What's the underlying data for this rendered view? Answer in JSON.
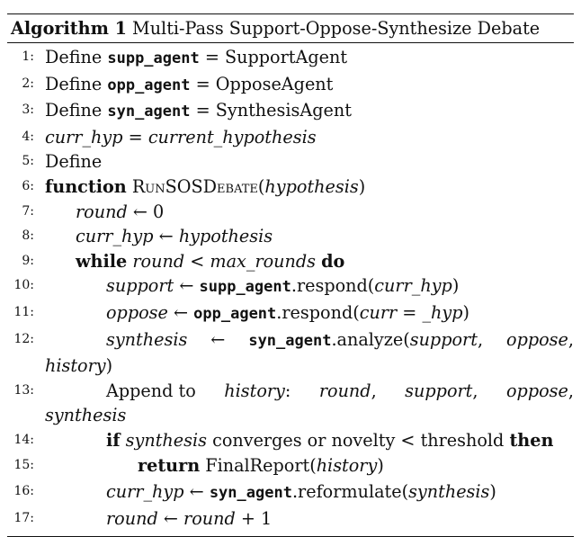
{
  "algorithm": {
    "label": "Algorithm 1",
    "title": "Multi-Pass Support-Oppose-Synthesize Debate",
    "lines": [
      {
        "n": "1:",
        "a": "Define ",
        "b": "supp_agent",
        "c": " = SupportAgent"
      },
      {
        "n": "2:",
        "a": "Define ",
        "b": "opp_agent",
        "c": " = OpposeAgent"
      },
      {
        "n": "3:",
        "a": "Define ",
        "b": "syn_agent",
        "c": " = SynthesisAgent"
      },
      {
        "n": "4:",
        "a": "curr_hyp",
        "b": " = ",
        "c": "current_hypothesis"
      },
      {
        "n": "5:",
        "a": "Define"
      },
      {
        "n": "6:",
        "a": "function",
        "b": "RunSOSDebate",
        "c": "(",
        "d": "hypothesis",
        "e": ")"
      },
      {
        "n": "7:",
        "a": "round",
        "b": " ← 0"
      },
      {
        "n": "8:",
        "a": "curr_hyp",
        "b": " ← ",
        "c": "hypothesis"
      },
      {
        "n": "9:",
        "a": "while",
        "b": "round",
        "c": " < ",
        "d": "max_rounds",
        "e": "do"
      },
      {
        "n": "10:",
        "a": "support",
        "b": " ← ",
        "c": "supp_agent",
        "d": ".respond(",
        "e": "curr_hyp",
        "f": ")"
      },
      {
        "n": "11:",
        "a": "oppose",
        "b": " ← ",
        "c": "opp_agent",
        "d": ".respond(",
        "e": "curr = _hyp",
        "f": ")"
      },
      {
        "n": "12:",
        "a": "synthesis",
        "b": " ← ",
        "c": "syn_agent",
        "d": ".analyze(",
        "e": "support",
        "f": ", ",
        "g": "oppose",
        "h": ",",
        "cont": "history",
        "cont2": ")"
      },
      {
        "n": "13:",
        "a": "Append to ",
        "b": "history",
        "c": ": ",
        "d": "round",
        "e": ", ",
        "f": "support",
        "g": ", ",
        "h": "oppose",
        "i": ",",
        "cont": "synthesis"
      },
      {
        "n": "14:",
        "a": "if",
        "b": "synthesis",
        "c": " converges or novelty < threshold ",
        "d": "then"
      },
      {
        "n": "15:",
        "a": "return",
        "b": " FinalReport(",
        "c": "history",
        "d": ")"
      },
      {
        "n": "16:",
        "a": "curr_hyp",
        "b": " ← ",
        "c": "syn_agent",
        "d": ".reformulate(",
        "e": "synthesis",
        "f": ")"
      },
      {
        "n": "17:",
        "a": "round",
        "b": " ← ",
        "c": "round",
        "d": " + 1"
      }
    ]
  }
}
